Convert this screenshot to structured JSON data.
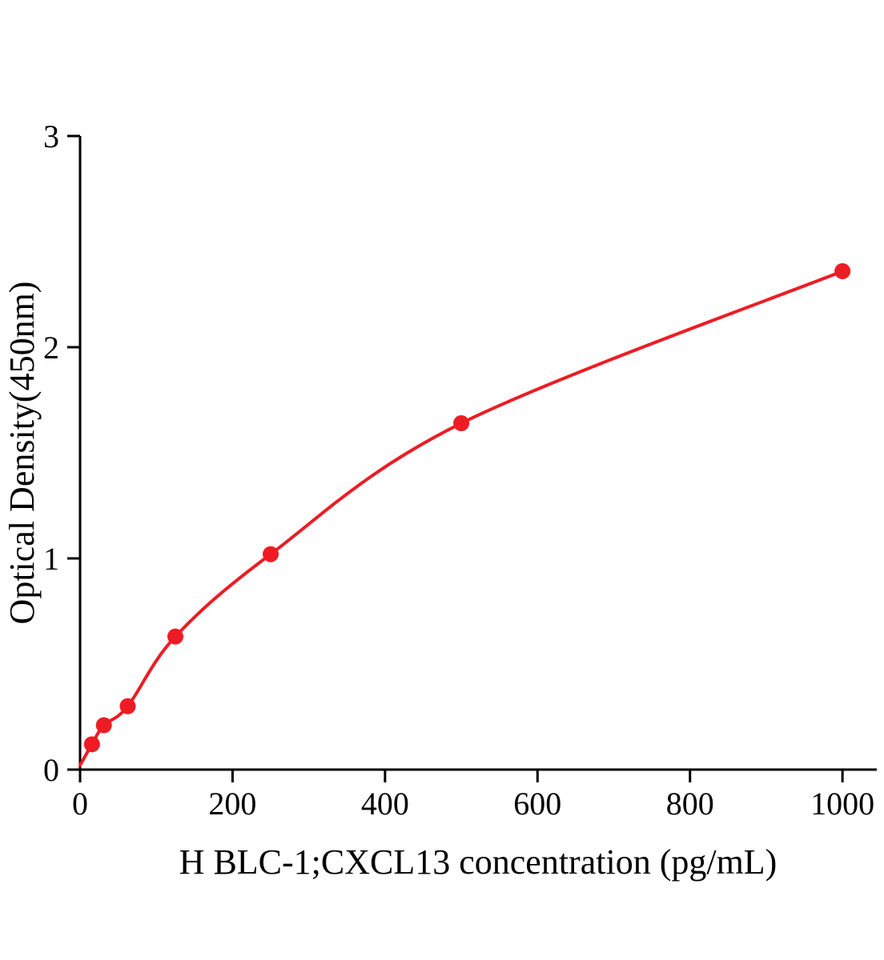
{
  "chart_data": {
    "type": "scatter",
    "title": "",
    "xlabel": "H BLC-1;CXCL13 concentration (pg/mL)",
    "ylabel": "Optical Density(450nm)",
    "xlim": [
      0,
      1045
    ],
    "ylim": [
      0,
      3
    ],
    "x_ticks": [
      0,
      200,
      400,
      600,
      800,
      1000
    ],
    "y_ticks": [
      0,
      1,
      2,
      3
    ],
    "grid": false,
    "legend": false,
    "axis_color": "#000000",
    "series": [
      {
        "name": "standard-curve",
        "color": "#ed1c24",
        "marker": "circle",
        "marker_radius": 10,
        "line_width": 4,
        "curve_start": {
          "x": 0,
          "y": 0.02
        },
        "points": [
          {
            "x": 15.6,
            "y": 0.12
          },
          {
            "x": 31.2,
            "y": 0.21
          },
          {
            "x": 62.5,
            "y": 0.3
          },
          {
            "x": 125,
            "y": 0.63
          },
          {
            "x": 250,
            "y": 1.02
          },
          {
            "x": 500,
            "y": 1.64
          },
          {
            "x": 1000,
            "y": 2.36
          }
        ]
      }
    ]
  }
}
